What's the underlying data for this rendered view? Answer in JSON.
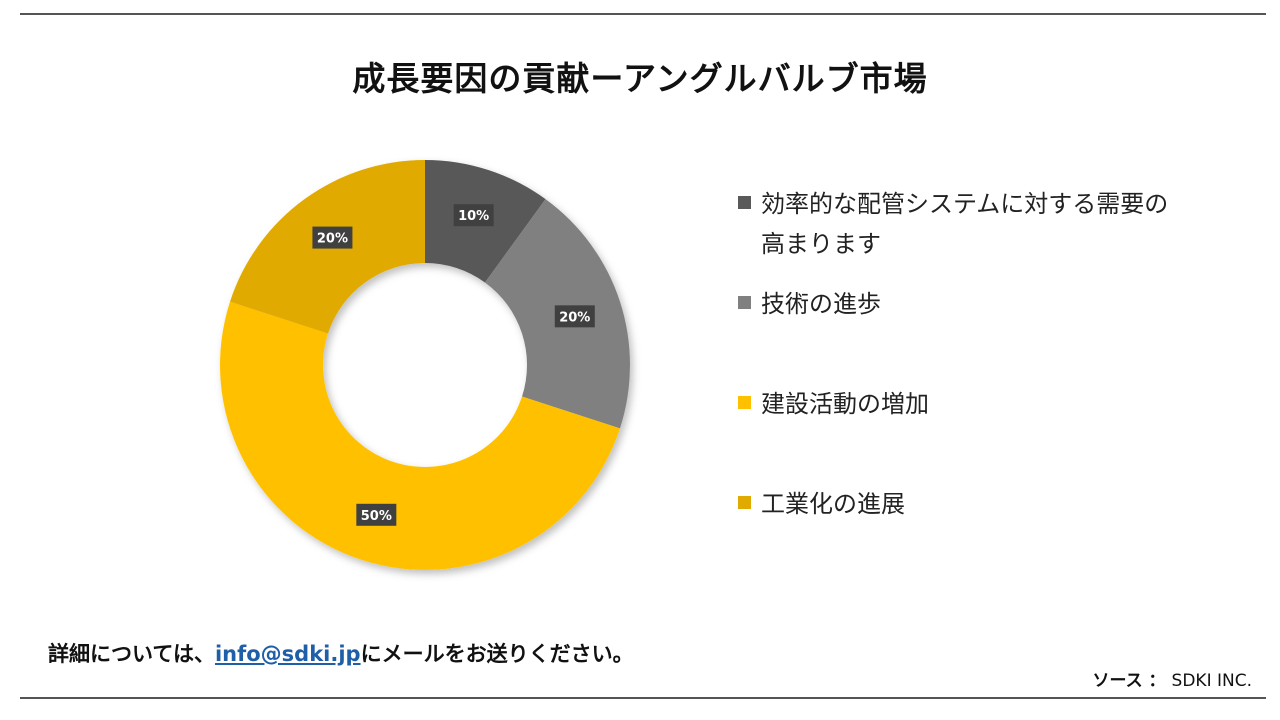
{
  "title": "成長要因の貢献ーアングルバルブ市場",
  "chart_data": {
    "type": "pie",
    "donut": true,
    "title": "成長要因の貢献ーアングルバルブ市場",
    "slices": [
      {
        "label": "効率的な配管システムに対する需要の高まります",
        "value": 10,
        "display": "10%",
        "color": "#595959"
      },
      {
        "label": "技術の進歩",
        "value": 20,
        "display": "20%",
        "color": "#808080"
      },
      {
        "label": "建設活動の増加",
        "value": 50,
        "display": "50%",
        "color": "#ffc000"
      },
      {
        "label": "工業化の進展",
        "value": 20,
        "display": "20%",
        "color": "#e0aa00"
      }
    ],
    "legend_position": "right"
  },
  "legend": [
    {
      "label": "効率的な配管システムに対する需要の高まります",
      "color": "#595959"
    },
    {
      "label": "技術の進歩",
      "color": "#808080"
    },
    {
      "label": "建設活動の増加",
      "color": "#ffc000"
    },
    {
      "label": "工業化の進展",
      "color": "#e0aa00"
    }
  ],
  "footer": {
    "prefix": "詳細については、",
    "email": "info@sdki.jp",
    "suffix": "にメールをお送りください。"
  },
  "source": {
    "label": "ソース ：",
    "value": "SDKI INC."
  }
}
